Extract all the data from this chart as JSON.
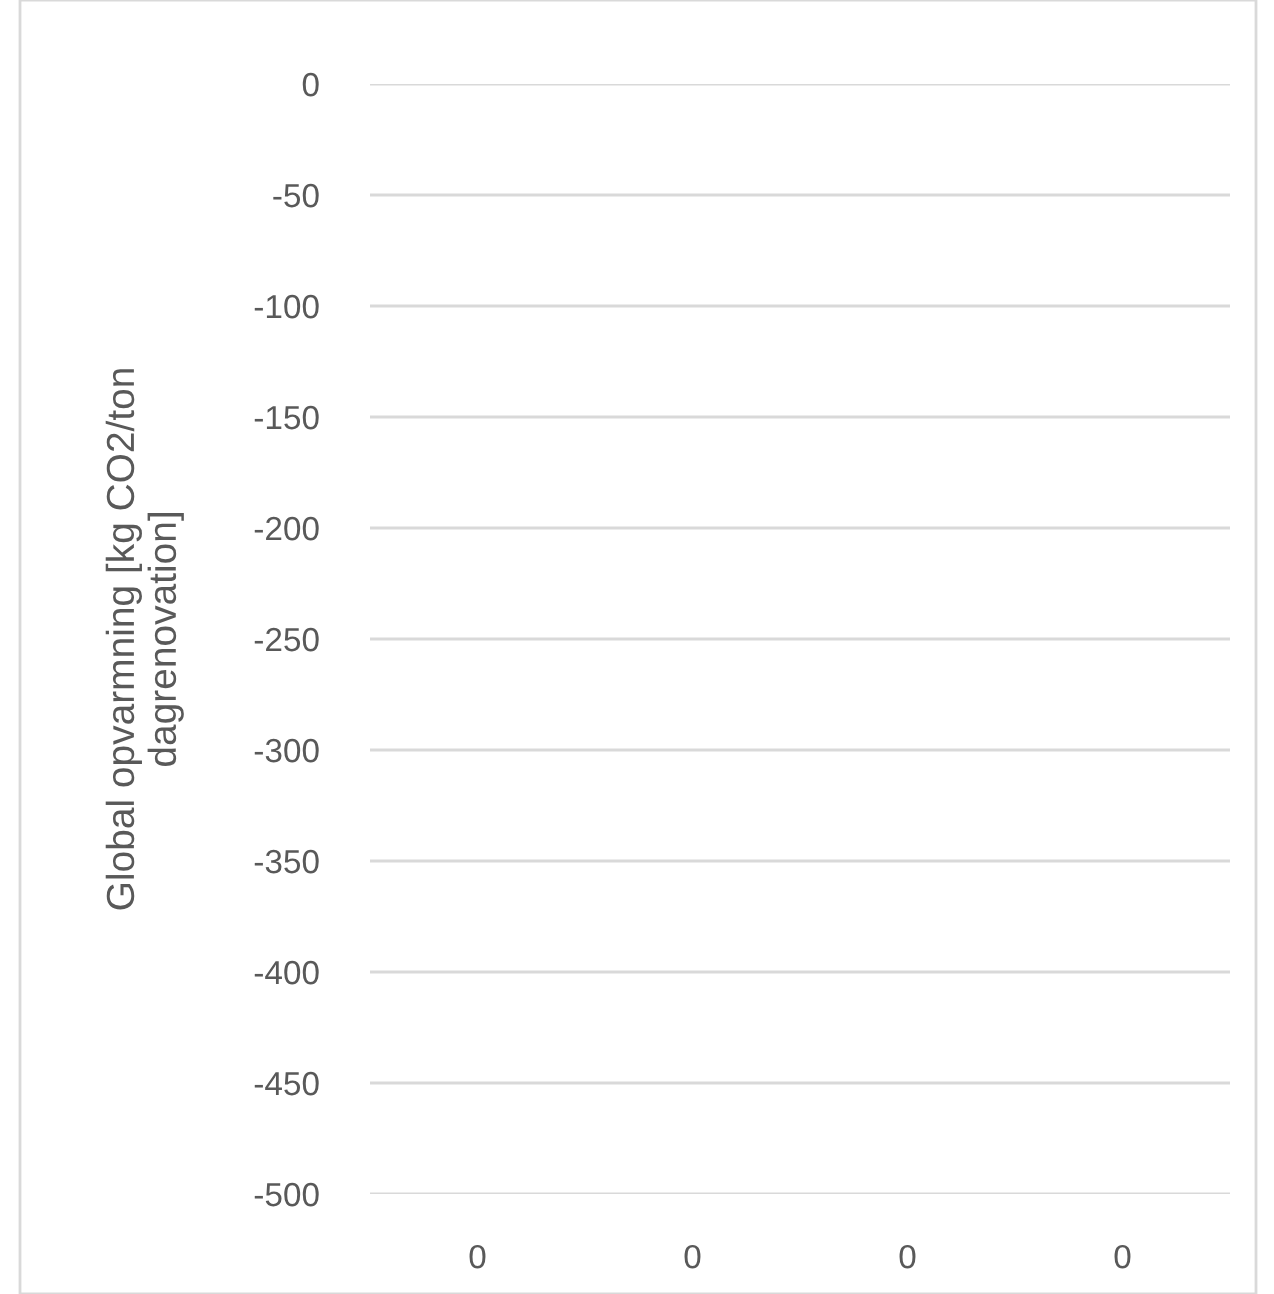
{
  "chart_data": {
    "type": "bar",
    "ylabel": "Global opvarmning [kg CO2/ton\ndagrenovation]",
    "categories": [
      "0",
      "0",
      "0",
      "0"
    ],
    "values": [
      null,
      null,
      null,
      null
    ],
    "ylim": [
      -500,
      0
    ],
    "yticks": [
      -500,
      -450,
      -400,
      -350,
      -300,
      -250,
      -200,
      -150,
      -100,
      -50,
      0
    ],
    "grid": "y"
  }
}
